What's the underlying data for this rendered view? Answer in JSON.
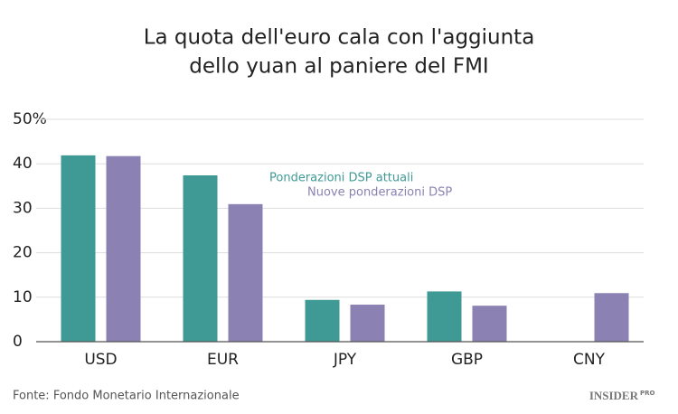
{
  "chart_data": {
    "type": "bar",
    "title": [
      "La quota dell'euro cala con l'aggiunta",
      "dello yuan al paniere del FMI"
    ],
    "categories": [
      "USD",
      "EUR",
      "JPY",
      "GBP",
      "CNY"
    ],
    "series": [
      {
        "name": "Ponderazioni DSP attuali",
        "color": "#3f9a96",
        "values": [
          41.9,
          37.4,
          9.4,
          11.3,
          null
        ]
      },
      {
        "name": "Nuove ponderazioni DSP",
        "color": "#8b82b3",
        "values": [
          41.73,
          30.93,
          8.33,
          8.09,
          10.92
        ]
      }
    ],
    "ylim": [
      0,
      50
    ],
    "yticks": [
      0,
      10,
      20,
      30,
      40,
      {
        "value": 50,
        "label": "50%"
      }
    ],
    "grid": true,
    "source": "Fonte: Fondo Monetario Internazionale",
    "logo": {
      "name": "INSIDER",
      "suffix": "PRO"
    }
  }
}
